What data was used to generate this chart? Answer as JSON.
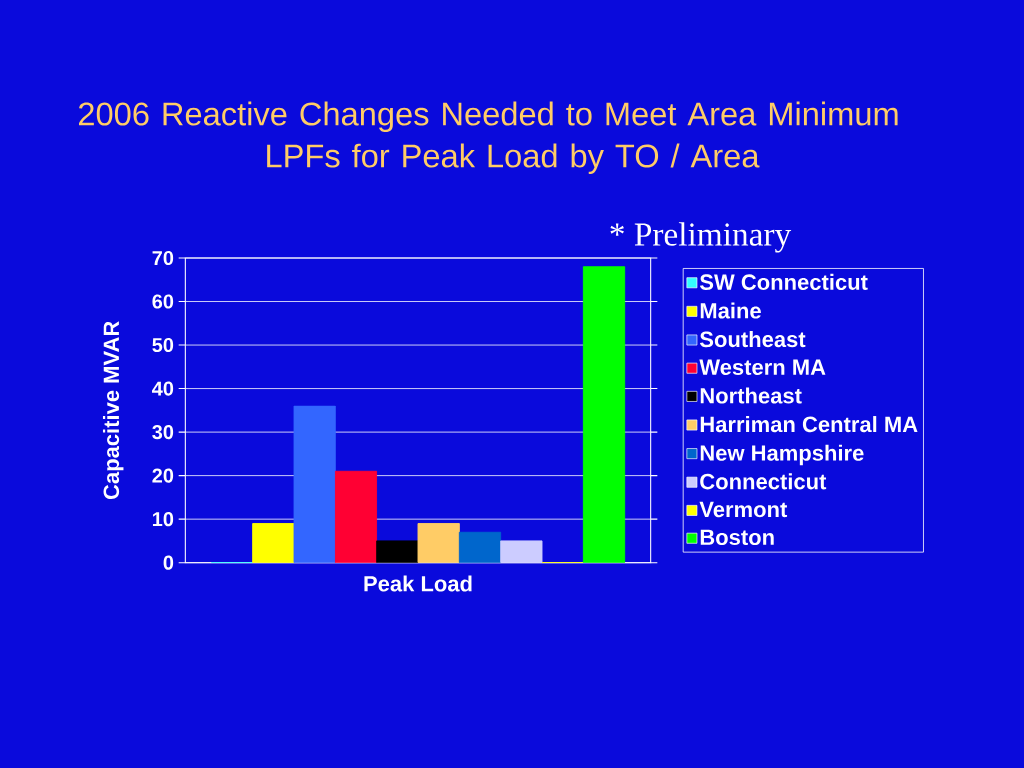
{
  "chart_data": {
    "type": "bar",
    "title": "2006 Reactive Changes Needed to Meet Area Minimum LPFs for Peak Load by TO / Area",
    "annotations": [
      "* Preliminary"
    ],
    "ylabel": "Capacitive MVAR",
    "categories": [
      "Peak Load"
    ],
    "series": [
      {
        "name": "SW Connecticut",
        "color": "#33ffff",
        "values": [
          0
        ]
      },
      {
        "name": "Maine",
        "color": "#ffff00",
        "values": [
          9
        ]
      },
      {
        "name": "Southeast",
        "color": "#3366ff",
        "values": [
          36
        ]
      },
      {
        "name": "Western MA",
        "color": "#ff0033",
        "values": [
          21
        ]
      },
      {
        "name": "Northeast",
        "color": "#000000",
        "values": [
          5
        ]
      },
      {
        "name": "Harriman Central MA",
        "color": "#ffcc66",
        "values": [
          9
        ]
      },
      {
        "name": "New Hampshire",
        "color": "#0066cc",
        "values": [
          7
        ]
      },
      {
        "name": "Connecticut",
        "color": "#ccccff",
        "values": [
          5
        ]
      },
      {
        "name": "Vermont",
        "color": "#ffff00",
        "values": [
          0
        ]
      },
      {
        "name": "Boston",
        "color": "#00ff00",
        "values": [
          68
        ]
      }
    ],
    "ylim": [
      0,
      70
    ],
    "yticks": [
      0,
      10,
      20,
      30,
      40,
      50,
      60,
      70
    ],
    "grid": "y",
    "legend": "right"
  }
}
